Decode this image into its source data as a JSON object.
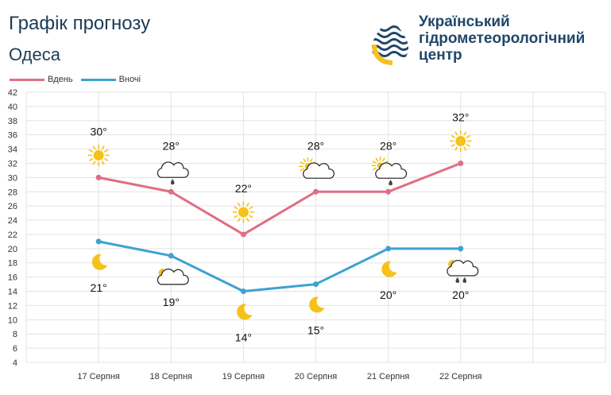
{
  "header": {
    "title": "Графік прогнозу",
    "city": "Одеса",
    "org_line1": "Український",
    "org_line2": "гідрометеорологічний",
    "org_line3": "центр"
  },
  "colors": {
    "day": "#e06e84",
    "night": "#3ea2d0",
    "sun": "#f4c21a",
    "cloud": "#333333"
  },
  "chart_data": {
    "type": "line",
    "categories": [
      "17 Серпня",
      "18 Серпня",
      "19 Серпня",
      "20 Серпня",
      "21 Серпня",
      "22 Серпня"
    ],
    "series": [
      {
        "name": "Вдень",
        "values": [
          30,
          28,
          22,
          28,
          28,
          32
        ],
        "labels": [
          "30°",
          "28°",
          "22°",
          "28°",
          "28°",
          "32°"
        ],
        "icons": [
          "sun-icon",
          "cloud-rain-icon",
          "sun-icon",
          "sun-cloud-icon",
          "sun-cloud-rain-icon",
          "sun-icon"
        ]
      },
      {
        "name": "Вночі",
        "values": [
          21,
          19,
          14,
          15,
          20,
          20
        ],
        "labels": [
          "21°",
          "19°",
          "14°",
          "15°",
          "20°",
          "20°"
        ],
        "icons": [
          "moon-icon",
          "moon-cloud-icon",
          "moon-icon",
          "moon-icon",
          "moon-icon",
          "moon-cloud-rain-icon"
        ]
      }
    ],
    "ylim": [
      4,
      42
    ],
    "yticks": [
      4,
      6,
      8,
      10,
      12,
      14,
      16,
      18,
      20,
      22,
      24,
      26,
      28,
      30,
      32,
      34,
      36,
      38,
      40,
      42
    ],
    "grid": true,
    "legend_position": "top-left"
  }
}
